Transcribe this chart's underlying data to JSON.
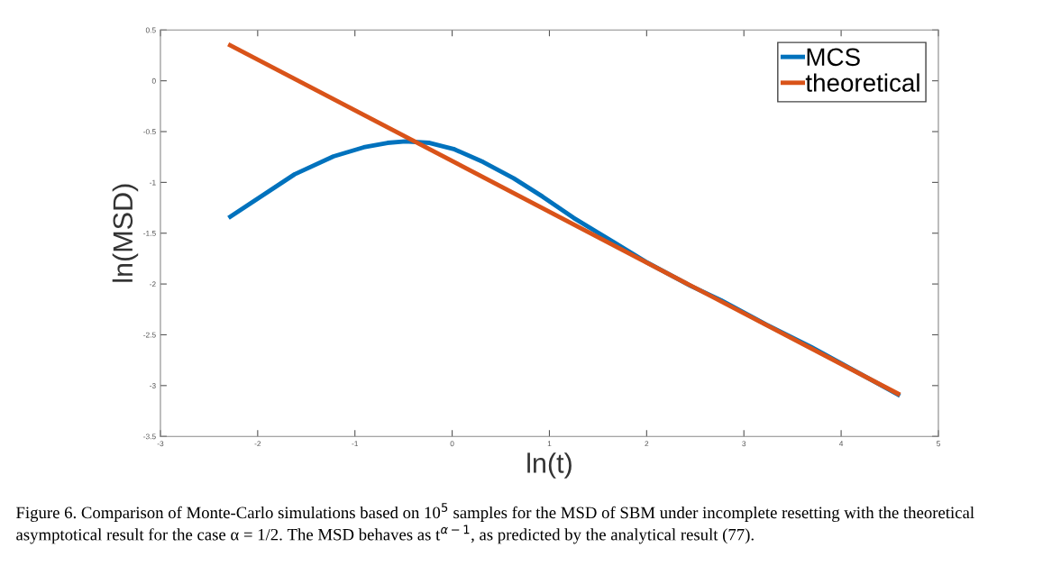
{
  "chart_data": {
    "type": "line",
    "xlabel": "ln(t)",
    "ylabel": "ln(MSD)",
    "series": [
      {
        "name": "MCS",
        "color": "#0072bd",
        "x": [
          -2.3,
          -1.62,
          -1.22,
          -0.91,
          -0.665,
          -0.48,
          -0.232,
          0.015,
          0.32,
          0.633,
          0.93,
          1.25,
          1.56,
          1.683,
          1.99,
          2.456,
          2.765,
          3.23,
          3.69,
          4.0,
          4.586,
          4.605
        ],
        "values": [
          -1.35,
          -0.92,
          -0.744,
          -0.655,
          -0.611,
          -0.597,
          -0.611,
          -0.671,
          -0.8,
          -0.96,
          -1.14,
          -1.35,
          -1.53,
          -1.6,
          -1.78,
          -2.02,
          -2.16,
          -2.4,
          -2.62,
          -2.78,
          -3.09,
          -3.1
        ]
      },
      {
        "name": "theoretical",
        "color": "#d95319",
        "x": [
          -2.303,
          4.605
        ],
        "values": [
          0.36,
          -3.09
        ]
      }
    ],
    "xlim": [
      -3,
      5
    ],
    "ylim": [
      -3.5,
      0.5
    ],
    "xticks": [
      -3,
      -2,
      -1,
      0,
      1,
      2,
      3,
      4,
      5
    ],
    "yticks": [
      {
        "value": -3.5,
        "label": "-3.5"
      },
      {
        "value": -3,
        "label": "-3"
      },
      {
        "value": -2.5,
        "label": "-2.5"
      },
      {
        "value": -2,
        "label": "-2"
      },
      {
        "value": -1.5,
        "label": "-1.5"
      },
      {
        "value": -1,
        "label": "-1"
      },
      {
        "value": -0.5,
        "label": "-0.5"
      },
      0,
      0.5
    ],
    "grid": false,
    "legend": "top right",
    "line_style": "solid",
    "marker": "none",
    "annotations": [
      "Figure 6. Comparison of Monte-Carlo simulations based on 10$^{5}$ samples for the MSD of SBM under incomplete resetting with the theoretical asymptotical result for the case α = 1/2. The MSD behaves as t$^{α−1}$, as predicted by the analytical result (77)."
    ]
  }
}
